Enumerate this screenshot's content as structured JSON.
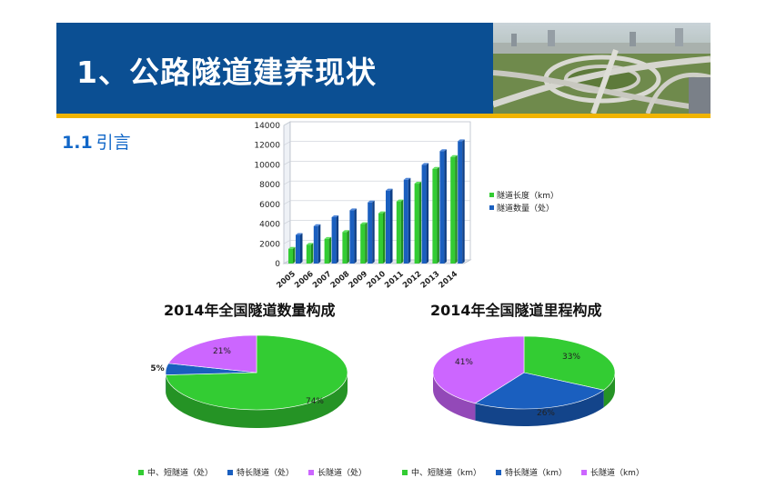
{
  "header": {
    "title": "1、公路隧道建养现状"
  },
  "section": {
    "number": "1.1",
    "title": "引言"
  },
  "colors": {
    "banner": "#0b4f93",
    "gold": "#f0b400",
    "green": "#33cc33",
    "blue": "#1a5fbf",
    "violet": "#cc66ff",
    "subtitle": "#1167c8"
  },
  "chart_data": [
    {
      "type": "bar",
      "categories": [
        "2005",
        "2006",
        "2007",
        "2008",
        "2009",
        "2010",
        "2011",
        "2012",
        "2013",
        "2014"
      ],
      "series": [
        {
          "name": "隧道长度（km）",
          "values": [
            1500,
            1900,
            2500,
            3200,
            4000,
            5100,
            6300,
            8100,
            9600,
            10800
          ]
        },
        {
          "name": "隧道数量（处）",
          "values": [
            2900,
            3800,
            4700,
            5400,
            6200,
            7400,
            8500,
            10000,
            11400,
            12400
          ]
        }
      ],
      "yticks": [
        "0",
        "2000",
        "4000",
        "6000",
        "8000",
        "10000",
        "12000",
        "14000"
      ],
      "ylim": [
        0,
        14000
      ],
      "legend": "right"
    },
    {
      "type": "pie",
      "title": "2014年全国隧道数量构成",
      "labels": [
        "中、短隧道（处）",
        "特长隧道（处）",
        "长隧道（处）"
      ],
      "values": [
        74,
        5,
        21
      ],
      "value_labels": [
        "74%",
        "5%",
        "21%"
      ],
      "legend": "bottom"
    },
    {
      "type": "pie",
      "title": "2014年全国隧道里程构成",
      "labels": [
        "中、短隧道（km）",
        "特长隧道（km）",
        "长隧道（km）"
      ],
      "values": [
        33,
        26,
        41
      ],
      "value_labels": [
        "33%",
        "26%",
        "41%"
      ],
      "legend": "bottom"
    }
  ]
}
